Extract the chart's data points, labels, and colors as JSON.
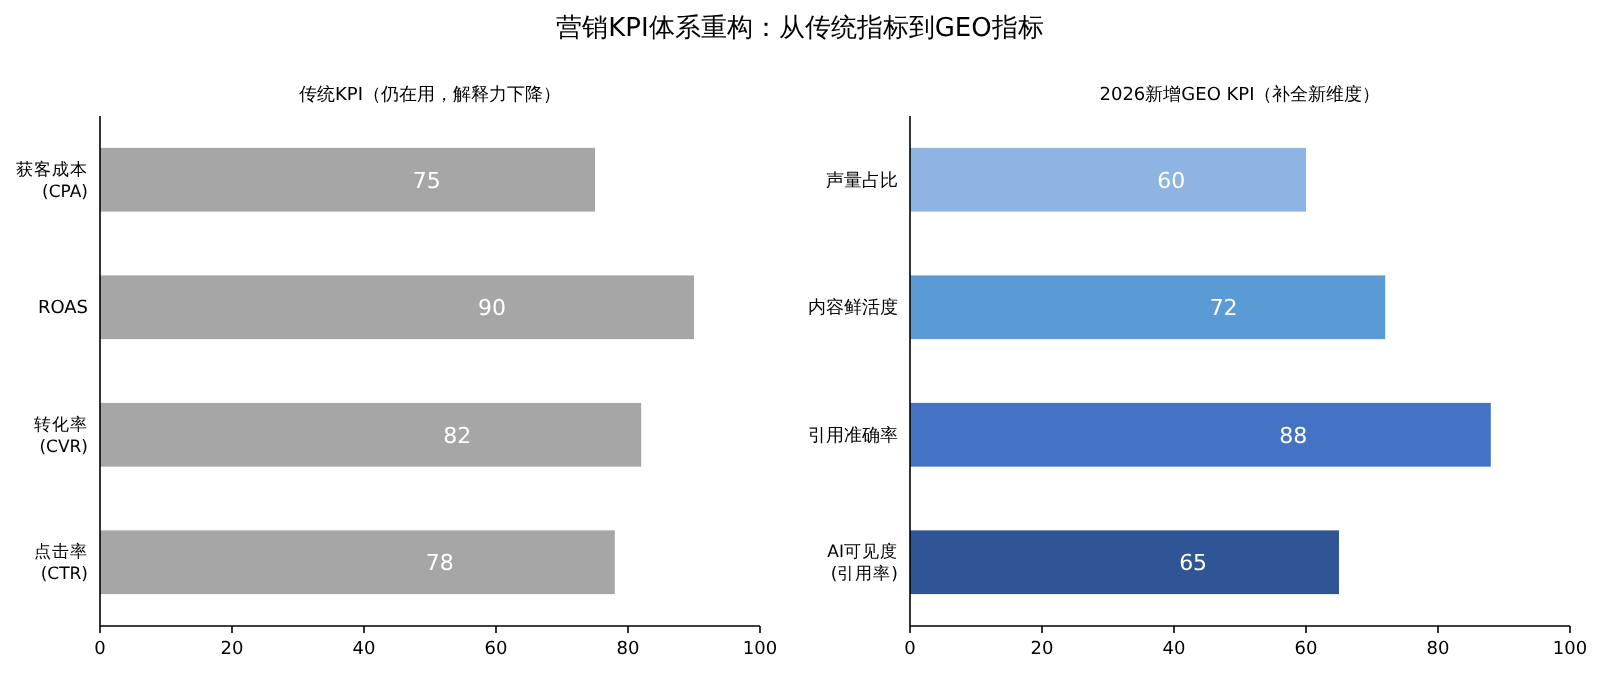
{
  "chart_data": [
    {
      "type": "other",
      "title": "营销KPI体系重构：从传统指标到GEO指标"
    },
    {
      "type": "bar",
      "orientation": "horizontal",
      "title": "传统KPI（仍在用，解释力下降）",
      "categories": [
        "获客成本\n(CPA)",
        "ROAS",
        "转化率\n(CVR)",
        "点击率\n(CTR)"
      ],
      "values": [
        75,
        90,
        82,
        78
      ],
      "colors": [
        "#a6a6a6",
        "#a6a6a6",
        "#a6a6a6",
        "#a6a6a6"
      ],
      "xlim": [
        0,
        100
      ],
      "xticks": [
        0,
        20,
        40,
        60,
        80,
        100
      ],
      "data_labels": true
    },
    {
      "type": "bar",
      "orientation": "horizontal",
      "title": "2026新增GEO KPI（补全新维度）",
      "categories": [
        "声量占比",
        "内容鲜活度",
        "引用准确率",
        "AI可见度\n(引用率)"
      ],
      "values": [
        60,
        72,
        88,
        65
      ],
      "colors": [
        "#8db4e2",
        "#5b9bd5",
        "#4472c4",
        "#2f5597"
      ],
      "xlim": [
        0,
        100
      ],
      "xticks": [
        0,
        20,
        40,
        60,
        80,
        100
      ],
      "data_labels": true
    }
  ]
}
